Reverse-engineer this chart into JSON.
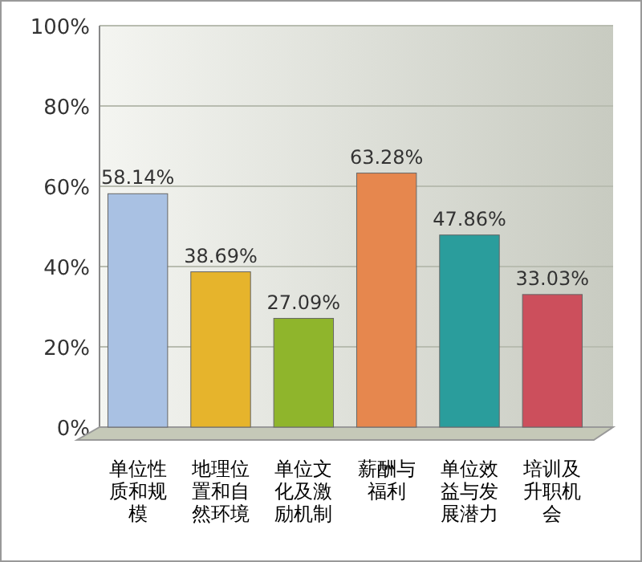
{
  "chart_data": {
    "type": "bar",
    "categories": [
      "单位性质和规模",
      "地理位置和自然环境",
      "单位文化及激励机制",
      "薪酬与福利",
      "单位效益与发展潜力",
      "培训及升职机会"
    ],
    "values": [
      58.14,
      38.69,
      27.09,
      63.28,
      47.86,
      33.03
    ],
    "value_labels": [
      "58.14%",
      "38.69%",
      "27.09%",
      "63.28%",
      "47.86%",
      "33.03%"
    ],
    "colors": [
      "#a9c1e3",
      "#e6b42c",
      "#8fb52c",
      "#e6874e",
      "#2a9d9c",
      "#cc4f5c"
    ],
    "ylim": [
      0,
      100
    ],
    "yticks": [
      {
        "value": 0,
        "label": "0%"
      },
      {
        "value": 20,
        "label": "20%"
      },
      {
        "value": 40,
        "label": "40%"
      },
      {
        "value": 60,
        "label": "60%"
      },
      {
        "value": 80,
        "label": "80%"
      },
      {
        "value": 100,
        "label": "100%"
      }
    ],
    "grid": "y"
  }
}
